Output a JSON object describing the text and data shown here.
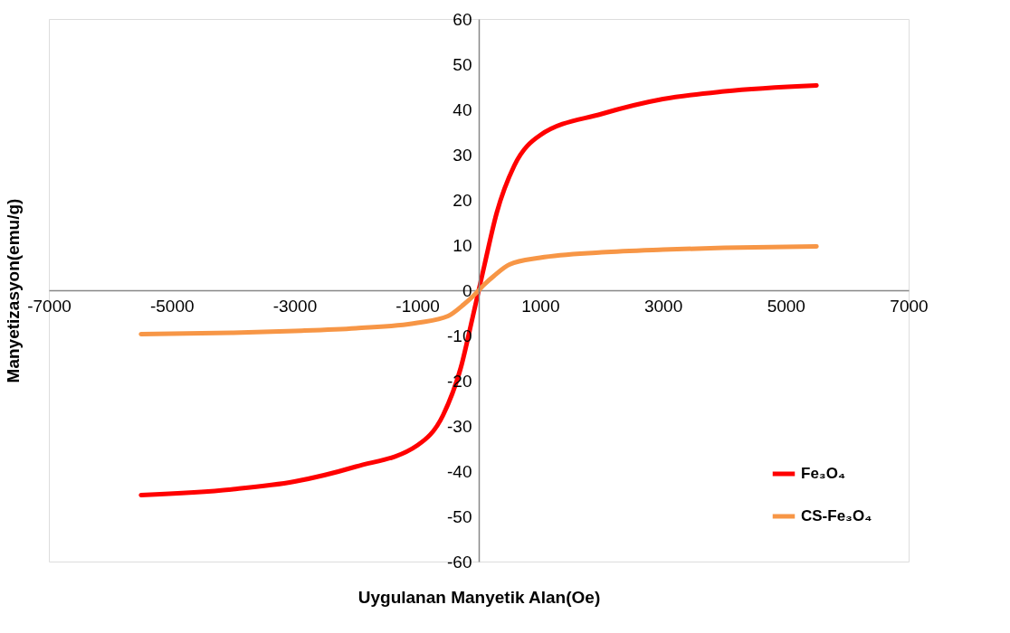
{
  "chart_data": {
    "type": "line",
    "xlabel": "Uygulanan Manyetik Alan(Oe)",
    "ylabel": "Manyetizasyon(emu/g)",
    "xlim": [
      -7000,
      7000
    ],
    "xticks": [
      -7000,
      -5000,
      -3000,
      -1000,
      1000,
      3000,
      5000,
      7000
    ],
    "ylim": [
      -60,
      60
    ],
    "yticks": [
      -60,
      -50,
      -40,
      -30,
      -20,
      -10,
      0,
      10,
      20,
      30,
      40,
      50,
      60
    ],
    "grid": false,
    "legend": "bottom right",
    "marker": "none",
    "line_style": "solid",
    "series": [
      {
        "name": "Fe₃O₄",
        "color": "#ff0000",
        "x": [
          -5500,
          -4000,
          -3000,
          -2000,
          -1000,
          -580,
          -290,
          -100,
          0,
          100,
          290,
          580,
          1000,
          2000,
          3000,
          4000,
          5500
        ],
        "values": [
          -45.3,
          -44,
          -42.3,
          -39,
          -34.3,
          -27.6,
          -17,
          -6,
          0,
          6,
          17,
          27.6,
          34.3,
          39,
          42.3,
          44,
          45.3
        ]
      },
      {
        "name": "CS-Fe₃O₄",
        "color": "#f79646",
        "x": [
          -5500,
          -4000,
          -3000,
          -2000,
          -1000,
          -500,
          -250,
          -100,
          0,
          100,
          250,
          500,
          1000,
          2000,
          3000,
          4000,
          5500
        ],
        "values": [
          -9.7,
          -9.4,
          -9,
          -8.4,
          -7.2,
          -5.7,
          -3.2,
          -1.4,
          0,
          1.4,
          3.2,
          5.7,
          7.2,
          8.4,
          9,
          9.4,
          9.7
        ]
      }
    ]
  }
}
